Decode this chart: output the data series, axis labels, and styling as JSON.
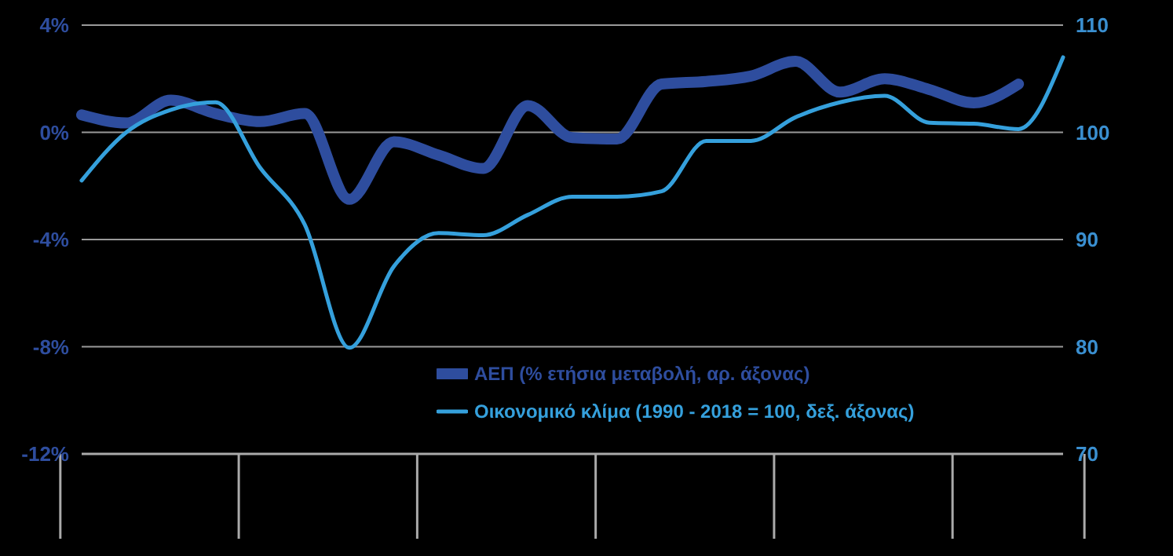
{
  "chart_data": {
    "type": "line",
    "categories": [
      null,
      null,
      null,
      null,
      null,
      null,
      null,
      null,
      null,
      null,
      null,
      null,
      null,
      null,
      null,
      null,
      null,
      null,
      null,
      null,
      null,
      null,
      null
    ],
    "series": [
      {
        "name": "ΑΕΠ (% ετήσια μεταβολή, αρ. άξονας)",
        "color": "#2e4d9e",
        "values": [
          0.65,
          0.35,
          1.2,
          0.7,
          0.4,
          0.7,
          -2.5,
          -0.35,
          -0.85,
          -1.35,
          1.0,
          -0.2,
          -0.25,
          1.8,
          1.9,
          2.1,
          2.65,
          1.5,
          2.0,
          1.6,
          1.1,
          1.8,
          null
        ]
      },
      {
        "name": "Οικονομικό κλίμα (1990 - 2018 = 100, δεξ. άξονας)",
        "color": "#35a0dc",
        "axis": "y2",
        "values": [
          95.5,
          100.0,
          102.1,
          102.8,
          96.7,
          91.4,
          79.9,
          87.5,
          90.6,
          90.4,
          92.3,
          94.0,
          94.0,
          94.5,
          99.2,
          99.2,
          101.4,
          102.8,
          103.4,
          100.9,
          100.8,
          100.3,
          107.0
        ]
      }
    ],
    "ylim": [
      -12,
      4
    ],
    "yticks": [
      {
        "value": -12,
        "label": "-12%"
      },
      {
        "value": -8,
        "label": "-8%"
      },
      {
        "value": -4,
        "label": "-4%"
      },
      {
        "value": 0,
        "label": "0%"
      },
      {
        "value": 4,
        "label": "4%"
      }
    ],
    "y2lim": [
      70,
      110
    ],
    "y2ticks": [
      70,
      80,
      90,
      100,
      110
    ],
    "grid": "y",
    "legend": "bottom right",
    "tick_labels": "y",
    "line_style": "solid",
    "marker": "none"
  }
}
